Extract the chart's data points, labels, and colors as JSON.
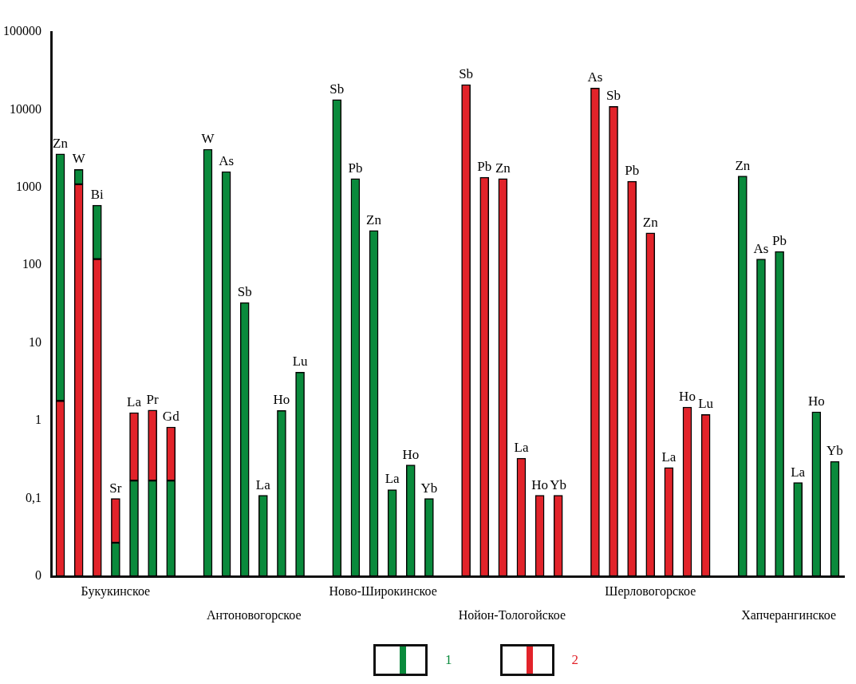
{
  "chart_data": {
    "type": "bar",
    "stacked": true,
    "log": "y",
    "legend": "bottom",
    "categories": [
      "Zn",
      "W",
      "Bi",
      "Sr",
      "La",
      "Pr",
      "Gd",
      null,
      "W",
      "As",
      "Sb",
      "La",
      "Ho",
      "Lu",
      null,
      "Sb",
      "Pb",
      "Zn",
      "La",
      "Ho",
      "Yb",
      null,
      "Sb",
      "Pb",
      "Zn",
      "La",
      "Ho",
      "Yb",
      null,
      "As",
      "Sb",
      "Pb",
      "Zn",
      "La",
      "Ho",
      "Lu",
      null,
      "Zn",
      "As",
      "Pb",
      "La",
      "Ho",
      "Yb"
    ],
    "series": [
      {
        "name": "2",
        "color": "#e2232a",
        "values": [
          1.8,
          1100,
          120,
          null,
          null,
          null,
          null,
          null,
          null,
          null,
          null,
          null,
          null,
          null,
          null,
          null,
          null,
          null,
          null,
          null,
          null,
          null,
          21000,
          1350,
          1300,
          0.33,
          0.11,
          0.11,
          null,
          19000,
          11000,
          1200,
          260,
          0.25,
          1.5,
          1.2,
          null,
          null,
          null,
          null,
          null,
          null,
          null
        ]
      },
      {
        "name": "1",
        "color": "#0a8a3c",
        "values": [
          2700,
          600,
          470,
          0.027,
          0.17,
          0.17,
          0.17,
          null,
          3100,
          1600,
          33,
          0.11,
          1.35,
          4.2,
          null,
          13500,
          1300,
          280,
          0.13,
          0.27,
          0.1,
          null,
          null,
          null,
          null,
          null,
          null,
          null,
          null,
          null,
          null,
          null,
          null,
          null,
          null,
          null,
          null,
          1400,
          120,
          150,
          0.16,
          1.3,
          0.3
        ]
      },
      {
        "color": "#e2232a",
        "values": [
          null,
          null,
          null,
          0.073,
          1.1,
          1.2,
          0.66,
          null,
          null,
          null,
          null,
          null,
          null,
          null,
          null,
          null,
          null,
          null,
          null,
          null,
          null,
          null,
          null,
          null,
          null,
          null,
          null,
          null,
          null,
          null,
          null,
          null,
          null,
          null,
          null,
          null,
          null,
          null,
          null,
          null,
          null,
          null,
          null
        ]
      }
    ],
    "ylim": [
      0.01,
      100000
    ],
    "yticks": [
      {
        "value": 0.01,
        "label": "0"
      },
      {
        "value": 0.1,
        "label": "0,1"
      },
      1,
      10,
      100,
      1000,
      10000,
      100000
    ],
    "annotations": [
      "Букукинское",
      "Антоновогорское",
      "Ново-Широкинское",
      "Нойон-Тологойское",
      "Шерловогорское",
      "Хапчерангинское"
    ]
  }
}
